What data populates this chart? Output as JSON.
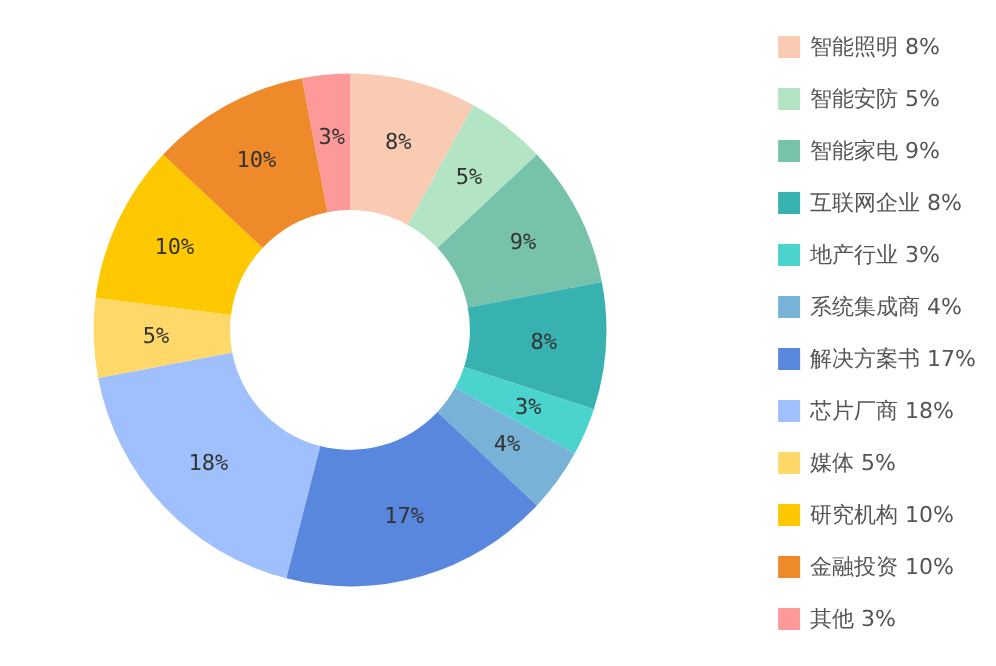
{
  "chart_data": {
    "type": "donut",
    "categories": [
      "智能照明",
      "智能安防",
      "智能家电",
      "互联网企业",
      "地产行业",
      "系统集成商",
      "解决方案书",
      "芯片厂商",
      "媒体",
      "研究机构",
      "金融投资",
      "其他"
    ],
    "values": [
      8,
      5,
      9,
      8,
      3,
      4,
      17,
      18,
      5,
      10,
      10,
      3
    ],
    "value_labels": [
      "8%",
      "5%",
      "9%",
      "8%",
      "3%",
      "4%",
      "17%",
      "18%",
      "5%",
      "10%",
      "10%",
      "3%"
    ],
    "colors": [
      "#f9cbb3",
      "#b3e5c5",
      "#77c2ab",
      "#37b2b0",
      "#4bd3cd",
      "#78b2d6",
      "#5887dd",
      "#9fc0fc",
      "#fed96a",
      "#fdc800",
      "#ee8a2a",
      "#fe9999"
    ],
    "legend": "right"
  }
}
